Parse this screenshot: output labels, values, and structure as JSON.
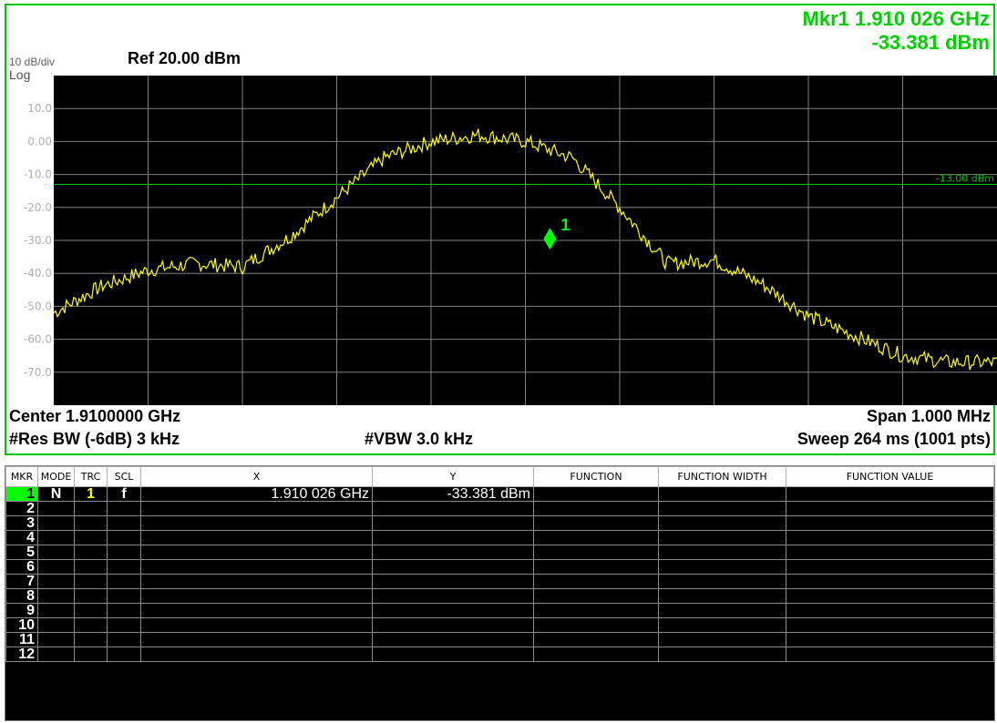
{
  "top_clipped_text": "(........),",
  "marker_readout": {
    "line1": "Mkr1 1.910 026 GHz",
    "line2": "-33.381 dBm"
  },
  "header": {
    "scale": "10 dB/div",
    "scale_type": "Log",
    "ref": "Ref 20.00 dBm"
  },
  "footer": {
    "center": "Center 1.9100000 GHz",
    "span": "Span 1.000 MHz",
    "rbw": "#Res BW (-6dB)  3 kHz",
    "vbw": "#VBW 3.0 kHz",
    "sweep": "Sweep  264 ms (1001 pts)"
  },
  "display_line_label": "-13.00 dBm",
  "marker_label": "1",
  "colors": {
    "screen_border": "#00c800",
    "trace": "#ffff00",
    "marker": "#00ff00",
    "display_line": "#00c000",
    "grid": "#808080"
  },
  "chart_data": {
    "type": "line",
    "title": "",
    "xlabel": "",
    "ylabel": "",
    "xlim": [
      1.9095,
      1.9105
    ],
    "ylim": [
      -80,
      20
    ],
    "y_ticks": [
      "10.0",
      "0.00",
      "-10.0",
      "-20.0",
      "-30.0",
      "-40.0",
      "-50.0",
      "-60.0",
      "-70.0"
    ],
    "grid": true,
    "display_line": -13.0,
    "series": [
      {
        "color": "#ffff00",
        "x": [
          1.9095,
          1.90955,
          1.9096,
          1.90965,
          1.9097,
          1.90975,
          1.9098,
          1.90985,
          1.9099,
          1.90995,
          1.91,
          1.91005,
          1.9101,
          1.91015,
          1.9102,
          1.91025,
          1.9103,
          1.91035,
          1.9104,
          1.91045,
          1.9105
        ],
        "values": [
          -52,
          -44,
          -39,
          -37,
          -38,
          -29,
          -17,
          -5,
          0,
          2,
          0,
          -5,
          -20,
          -37,
          -36,
          -43,
          -53,
          -59,
          -65,
          -67,
          -67
        ]
      }
    ],
    "marker": {
      "x": 1.910026,
      "y": -33.381
    }
  },
  "table": {
    "columns": [
      "MKR",
      "MODE",
      "TRC",
      "SCL",
      "X",
      "Y",
      "FUNCTION",
      "FUNCTION WIDTH",
      "FUNCTION VALUE"
    ],
    "rows": [
      [
        "1",
        "N",
        "1",
        "f",
        "1.910 026 GHz",
        "-33.381 dBm",
        "",
        "",
        ""
      ],
      [
        "2",
        "",
        "",
        "",
        "",
        "",
        "",
        "",
        ""
      ],
      [
        "3",
        "",
        "",
        "",
        "",
        "",
        "",
        "",
        ""
      ],
      [
        "4",
        "",
        "",
        "",
        "",
        "",
        "",
        "",
        ""
      ],
      [
        "5",
        "",
        "",
        "",
        "",
        "",
        "",
        "",
        ""
      ],
      [
        "6",
        "",
        "",
        "",
        "",
        "",
        "",
        "",
        ""
      ],
      [
        "7",
        "",
        "",
        "",
        "",
        "",
        "",
        "",
        ""
      ],
      [
        "8",
        "",
        "",
        "",
        "",
        "",
        "",
        "",
        ""
      ],
      [
        "9",
        "",
        "",
        "",
        "",
        "",
        "",
        "",
        ""
      ],
      [
        "10",
        "",
        "",
        "",
        "",
        "",
        "",
        "",
        ""
      ],
      [
        "11",
        "",
        "",
        "",
        "",
        "",
        "",
        "",
        ""
      ],
      [
        "12",
        "",
        "",
        "",
        "",
        "",
        "",
        "",
        ""
      ]
    ]
  }
}
